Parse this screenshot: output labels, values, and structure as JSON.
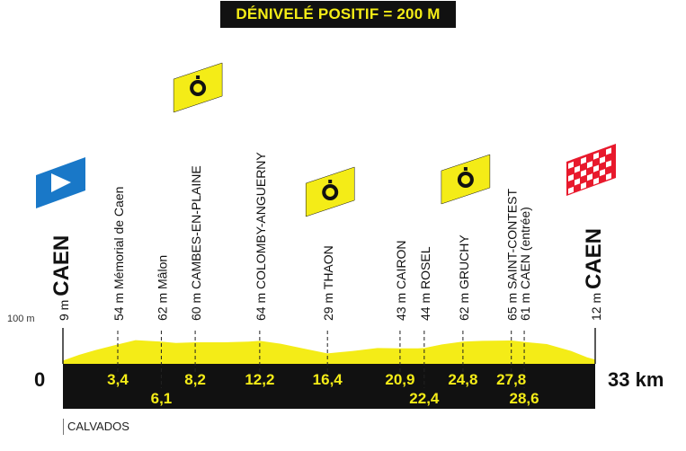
{
  "header": {
    "title": "DÉNIVELÉ POSITIF = 200 M"
  },
  "region": "CALVADOS",
  "colors": {
    "profile": "#f4ec17",
    "ground": "#111111",
    "banner_bg": "#111111",
    "banner_text": "#f4ec17",
    "start_flag": "#1978c8",
    "finish_flag": "#e8192c"
  },
  "chart_data": {
    "type": "area",
    "title": "DÉNIVELÉ POSITIF = 200 M",
    "xlim": [
      0,
      33
    ],
    "ylim": [
      0,
      100
    ],
    "x_start_label": "0",
    "x_end_label": "33 km",
    "y_ref_label": "100 m",
    "series": [
      {
        "x": [
          0,
          1,
          2,
          3.4,
          4.5,
          6.1,
          7,
          8.2,
          10,
          11.5,
          12.2,
          13.5,
          15,
          16.4,
          18,
          19.5,
          20.9,
          22,
          22.4,
          23.5,
          24.8,
          26,
          27.8,
          28.6,
          30,
          31.5,
          32.5,
          33
        ],
        "y": [
          9,
          25,
          38,
          54,
          66,
          62,
          58,
          60,
          60,
          62,
          64,
          56,
          42,
          29,
          36,
          44,
          43,
          43,
          44,
          54,
          62,
          64,
          65,
          61,
          55,
          36,
          18,
          12
        ]
      }
    ],
    "km_labels": [
      {
        "value": "3,4",
        "row": 1
      },
      {
        "value": "6,1",
        "row": 2
      },
      {
        "value": "8,2",
        "row": 1
      },
      {
        "value": "12,2",
        "row": 1
      },
      {
        "value": "16,4",
        "row": 1
      },
      {
        "value": "20,9",
        "row": 1
      },
      {
        "value": "22,4",
        "row": 2
      },
      {
        "value": "24,8",
        "row": 1
      },
      {
        "value": "27,8",
        "row": 1
      },
      {
        "value": "28,6",
        "row": 2
      }
    ],
    "waypoints": [
      {
        "km": 0,
        "alt": "9 m",
        "name": "CAEN",
        "kind": "start"
      },
      {
        "km": 3.4,
        "alt": "54 m",
        "name": "Mémorial de Caen",
        "kind": "poi"
      },
      {
        "km": 6.1,
        "alt": "62 m",
        "name": "Mâlon",
        "kind": "poi"
      },
      {
        "km": 8.2,
        "alt": "60 m",
        "name": "CAMBES-EN-PLAINE",
        "kind": "town"
      },
      {
        "km": 12.2,
        "alt": "64 m",
        "name": "COLOMBY-ANGUERNY",
        "kind": "town"
      },
      {
        "km": 16.4,
        "alt": "29 m",
        "name": "THAON",
        "kind": "town"
      },
      {
        "km": 20.9,
        "alt": "43 m",
        "name": "CAIRON",
        "kind": "town"
      },
      {
        "km": 22.4,
        "alt": "44 m",
        "name": "ROSEL",
        "kind": "town"
      },
      {
        "km": 24.8,
        "alt": "62 m",
        "name": "GRUCHY",
        "kind": "town"
      },
      {
        "km": 27.8,
        "alt": "65 m",
        "name": "SAINT-CONTEST",
        "kind": "town"
      },
      {
        "km": 28.6,
        "alt": "61 m",
        "name": "CAEN (entrée)",
        "kind": "poi"
      },
      {
        "km": 33,
        "alt": "12 m",
        "name": "CAEN",
        "kind": "finish"
      }
    ],
    "timing_points_km": [
      8.2,
      16.4,
      24.8
    ]
  }
}
